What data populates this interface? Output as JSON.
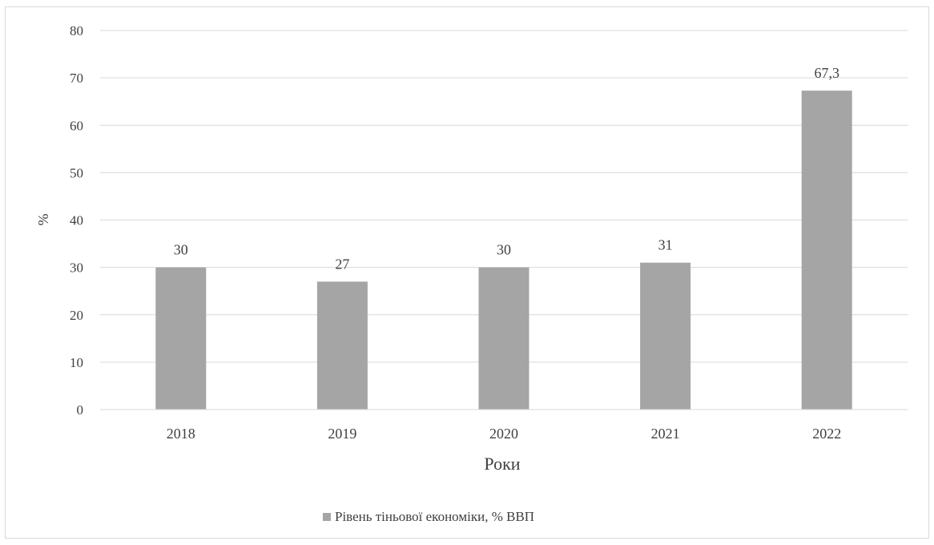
{
  "chart_data": {
    "type": "bar",
    "categories": [
      "2018",
      "2019",
      "2020",
      "2021",
      "2022"
    ],
    "series": [
      {
        "name": "Рівень тіньової економіки, % ВВП",
        "values": [
          30,
          27,
          30,
          31,
          67.3
        ],
        "labels": [
          "30",
          "27",
          "30",
          "31",
          "67,3"
        ],
        "color": "#a5a5a5"
      }
    ],
    "xlabel": "Роки",
    "ylabel": "%",
    "ylim": [
      0,
      80
    ],
    "yticks": [
      0,
      10,
      20,
      30,
      40,
      50,
      60,
      70,
      80
    ],
    "grid": true,
    "legend": "bottom"
  }
}
